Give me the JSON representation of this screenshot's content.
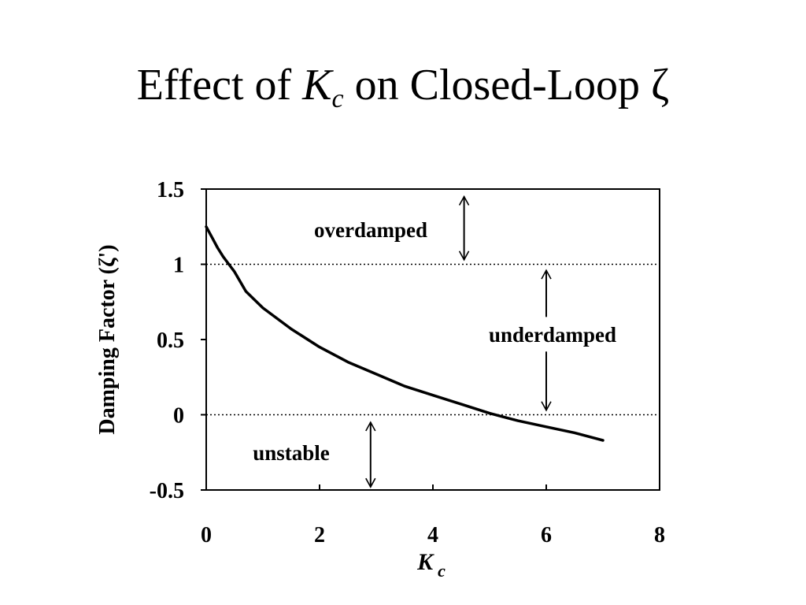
{
  "slide": {
    "title_before": "Effect of ",
    "title_symbol": "K",
    "title_subscript": "c",
    "title_after": " on Closed-Loop ζ"
  },
  "chart_data": {
    "type": "line",
    "title": "Effect of Kc on Closed-Loop ζ",
    "xlabel": "K",
    "xlabel_subscript": "c",
    "ylabel": "Damping Factor (ζ')",
    "xlim": [
      0,
      8
    ],
    "ylim": [
      -0.5,
      1.5
    ],
    "x_ticks": [
      "0",
      "2",
      "4",
      "6",
      "8"
    ],
    "y_ticks": [
      "1.5",
      "1",
      "0.5",
      "0",
      "-0.5"
    ],
    "x_tick_values": [
      0,
      2,
      4,
      6,
      8
    ],
    "y_tick_values": [
      1.5,
      1,
      0.5,
      0,
      -0.5
    ],
    "grid": false,
    "reference_lines": [
      1,
      0
    ],
    "series": [
      {
        "x": [
          0,
          0.1,
          0.2,
          0.3,
          0.4,
          0.5,
          0.7,
          1.0,
          1.5,
          2.0,
          2.5,
          3.0,
          3.5,
          4.0,
          4.5,
          5.0,
          5.5,
          6.0,
          6.5,
          7.0
        ],
        "y": [
          1.25,
          1.18,
          1.11,
          1.05,
          1.0,
          0.95,
          0.82,
          0.71,
          0.57,
          0.45,
          0.35,
          0.27,
          0.19,
          0.13,
          0.07,
          0.01,
          -0.04,
          -0.08,
          -0.12,
          -0.17
        ]
      }
    ],
    "annotations": [
      {
        "text": "overdamped",
        "arrow_x": 4.55,
        "arrow_from": 1.45,
        "arrow_to": 1.03,
        "head": "both"
      },
      {
        "text": "underdamped",
        "arrow_x": 6.0,
        "segments": [
          [
            0.96,
            0.65
          ],
          [
            0.42,
            0.03
          ]
        ],
        "head": "ends"
      },
      {
        "text": "unstable",
        "arrow_x": 2.9,
        "arrow_from": -0.05,
        "arrow_to": -0.48,
        "head": "both"
      }
    ]
  }
}
